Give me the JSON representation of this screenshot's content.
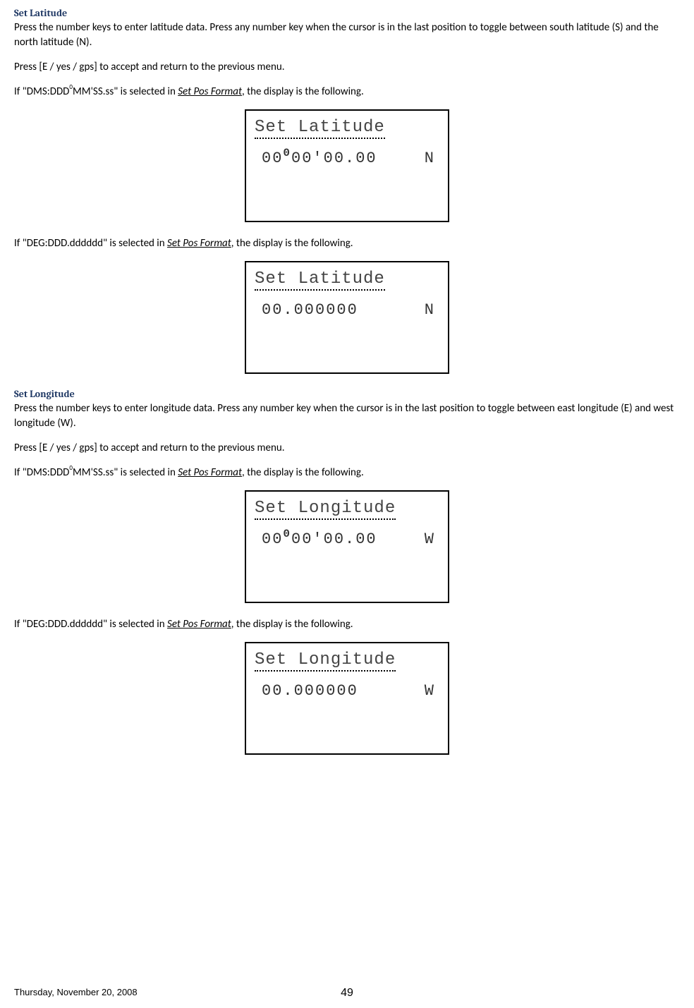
{
  "sections": {
    "set_latitude": {
      "heading": "Set Latitude",
      "para1": "Press the number keys to enter latitude data. Press any number key when the cursor is in the last position to toggle between south latitude (S) and the north latitude (N).",
      "para2": "Press [E / yes / gps] to accept and return to the previous menu.",
      "para3_pre": "If \"DMS:DDD",
      "para3_sup": "0",
      "para3_mid": "MM'SS.ss\" is selected in ",
      "para3_link": "Set Pos Format",
      "para3_post": ", the display is the following.",
      "para4_pre": "If \"DEG:DDD.dddddd\" is selected in ",
      "para4_link": "Set Pos Format",
      "para4_post": ", the display is the following."
    },
    "set_longitude": {
      "heading": "Set Longitude",
      "para1": "Press the number keys to enter longitude data. Press any number key when the cursor is in the last position to toggle between east longitude (E) and west longitude (W).",
      "para2": "Press [E / yes / gps] to accept and return to the previous menu.",
      "para3_pre": "If \"DMS:DDD",
      "para3_sup": "0",
      "para3_mid": "MM'SS.ss\" is selected in ",
      "para3_link": "Set Pos Format",
      "para3_post": ", the display is the following.",
      "para4_pre": "If \"DEG:DDD.dddddd\" is selected in ",
      "para4_link": "Set Pos Format",
      "para4_post": ", the display is the following."
    }
  },
  "displays": {
    "lat_dms": {
      "title": "Set Latitude",
      "value_pre": "00",
      "value_deg": "0",
      "value_post": "00'00.00",
      "direction": "N"
    },
    "lat_deg": {
      "title": "Set Latitude",
      "value": "00.000000",
      "direction": "N"
    },
    "lon_dms": {
      "title": "Set Longitude",
      "value_pre": "00",
      "value_deg": "0",
      "value_post": "00'00.00",
      "direction": "W"
    },
    "lon_deg": {
      "title": "Set Longitude",
      "value": "00.000000",
      "direction": "W"
    }
  },
  "footer": {
    "date": "Thursday, November 20, 2008",
    "page": "49"
  },
  "colors": {
    "heading_color": "#1f3864",
    "text_color": "#000000",
    "lcd_text": "#444444"
  }
}
